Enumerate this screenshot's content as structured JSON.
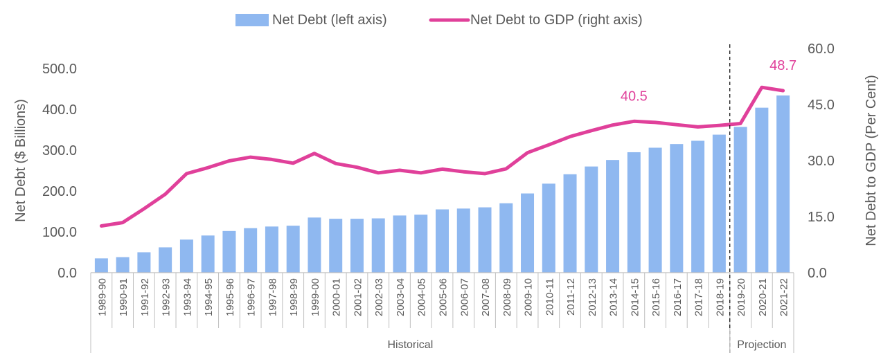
{
  "chart_data": {
    "type": "bar+line",
    "legend": {
      "position": "top",
      "entries": [
        {
          "key": "bars",
          "label": "Net Debt (left axis)"
        },
        {
          "key": "line",
          "label": "Net Debt to GDP (right axis)"
        }
      ]
    },
    "colors": {
      "bars": "#8fb8f0",
      "line": "#e0409a",
      "axis": "#bfbfbf",
      "text": "#595959"
    },
    "y_left": {
      "label": "Net Debt ($ Billions)",
      "min": 0,
      "max": 500,
      "ticks": [
        "0.0",
        "100.0",
        "200.0",
        "300.0",
        "400.0",
        "500.0"
      ]
    },
    "y_right": {
      "label": "Net Debt to GDP (Per Cent)",
      "min": 0,
      "max": 60,
      "ticks": [
        "0.0",
        "15.0",
        "30.0",
        "45.0",
        "60.0"
      ]
    },
    "categories": [
      "1989-90",
      "1990-91",
      "1991-92",
      "1992-93",
      "1993-94",
      "1994-95",
      "1995-96",
      "1996-97",
      "1997-98",
      "1998-99",
      "1999-00",
      "2000-01",
      "2001-02",
      "2002-03",
      "2003-04",
      "2004-05",
      "2005-06",
      "2006-07",
      "2007-08",
      "2008-09",
      "2009-10",
      "2010-11",
      "2011-12",
      "2012-13",
      "2013-14",
      "2014-15",
      "2015-16",
      "2016-17",
      "2017-18",
      "2018-19",
      "2019-20",
      "2020-21",
      "2021-22"
    ],
    "series": [
      {
        "name": "Net Debt (left axis)",
        "type": "bar",
        "axis": "left",
        "values": [
          35,
          38,
          50,
          62,
          81,
          91,
          102,
          109,
          113,
          115,
          135,
          132,
          132,
          133,
          140,
          142,
          155,
          157,
          160,
          170,
          194,
          218,
          241,
          260,
          276,
          295,
          306,
          315,
          323,
          338,
          357,
          404,
          434
        ]
      },
      {
        "name": "Net Debt to GDP (right axis)",
        "type": "line",
        "axis": "right",
        "values": [
          12.5,
          13.4,
          17.1,
          21,
          26.5,
          28.1,
          29.9,
          30.9,
          30.3,
          29.3,
          31.9,
          29.2,
          28.2,
          26.7,
          27.4,
          26.7,
          27.7,
          27,
          26.5,
          27.8,
          32.1,
          34.2,
          36.4,
          38,
          39.5,
          40.5,
          40.2,
          39.6,
          39,
          39.4,
          39.9,
          49.6,
          48.7
        ]
      }
    ],
    "annotations": [
      {
        "category": "2014-15",
        "text": "40.5"
      },
      {
        "category": "2021-22",
        "text": "48.7"
      }
    ],
    "groups": [
      {
        "label": "Historical",
        "from": "1989-90",
        "to": "2018-19"
      },
      {
        "label": "Projection",
        "from": "2019-20",
        "to": "2021-22"
      }
    ]
  }
}
